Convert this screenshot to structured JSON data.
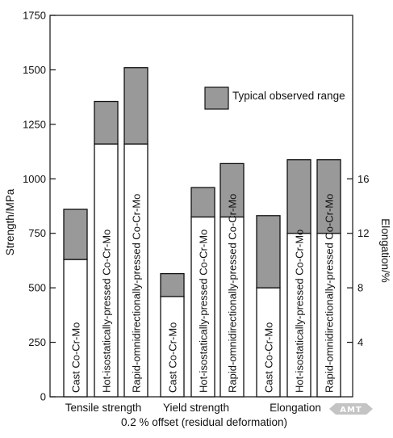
{
  "chart_data": {
    "type": "bar",
    "y_left": {
      "label": "Strength/MPa",
      "ylim": [
        0,
        1750
      ],
      "ticks": [
        0,
        250,
        500,
        750,
        1000,
        1250,
        1500,
        1750
      ]
    },
    "y_right": {
      "label": "Elongation/%",
      "ylim": [
        0,
        28
      ],
      "ticks": [
        4,
        8,
        12,
        16
      ]
    },
    "groups": [
      {
        "name": "Tensile strength",
        "axis": "left",
        "bars": [
          {
            "label": "Cast Co-Cr-Mo",
            "low": 630,
            "high": 860
          },
          {
            "label": "Hot-isostatically-pressed Co-Cr-Mo",
            "low": 1160,
            "high": 1355
          },
          {
            "label": "Rapid-omnidirectionally-pressed Co-Cr-Mo",
            "low": 1160,
            "high": 1510
          }
        ]
      },
      {
        "name": "Yield strength",
        "axis": "left",
        "bars": [
          {
            "label": "Cast Co-Cr-Mo",
            "low": 460,
            "high": 565
          },
          {
            "label": "Hot-isostatically-pressed Co-Cr-Mo",
            "low": 825,
            "high": 960
          },
          {
            "label": "Rapid-omnidirectionally-pressed Co-Cr-Mo",
            "low": 825,
            "high": 1070
          }
        ]
      },
      {
        "name": "Elongation",
        "axis": "right",
        "bars": [
          {
            "label": "Cast Co-Cr-Mo",
            "low": 8.0,
            "high": 13.3
          },
          {
            "label": "Hot-isostatically-pressed Co-Cr-Mo",
            "low": 12.0,
            "high": 17.4
          },
          {
            "label": "Rapid-omnidirectionally-pressed Co-Cr-Mo",
            "low": 12.0,
            "high": 17.4
          }
        ]
      }
    ],
    "legend": {
      "label": "Typical observed range",
      "position": "top-right"
    },
    "xlabel": "0.2 % offset (residual deformation)",
    "colors": {
      "range_fill": "#999999",
      "base_fill": "#ffffff",
      "stroke": "#111111"
    }
  },
  "watermark": "AMT"
}
